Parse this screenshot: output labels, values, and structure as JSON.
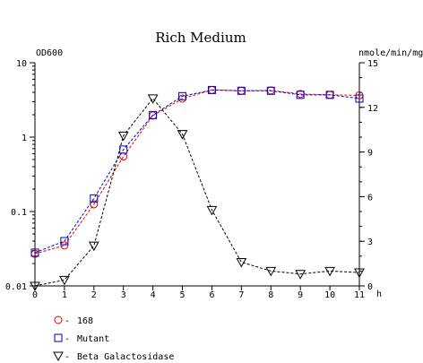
{
  "chart_data": {
    "type": "line",
    "title": "Rich Medium",
    "x": [
      0,
      1,
      2,
      3,
      4,
      5,
      6,
      7,
      8,
      9,
      10,
      11
    ],
    "x_label": "h",
    "y_left_label": "OD600",
    "y_right_label": "nmole/min/mg",
    "y_left_scale": "log",
    "y_left_range": [
      0.01,
      10
    ],
    "y_left_ticks": [
      "0.01",
      "0.1",
      "1",
      "10"
    ],
    "y_right_range": [
      0,
      15
    ],
    "y_right_ticks": [
      "0",
      "3",
      "6",
      "9",
      "12",
      "15"
    ],
    "x_ticks": [
      "0",
      "1",
      "2",
      "3",
      "4",
      "5",
      "6",
      "7",
      "8",
      "9",
      "10",
      "11"
    ],
    "legend_position": "bottom-left",
    "series": [
      {
        "name": "168",
        "axis": "left",
        "color": "#e00000",
        "marker": "circle",
        "values": [
          0.027,
          0.035,
          0.125,
          0.55,
          1.95,
          3.3,
          4.3,
          4.2,
          4.25,
          3.8,
          3.7,
          3.65
        ]
      },
      {
        "name": "Mutant",
        "axis": "left",
        "color": "#0000c8",
        "marker": "square",
        "values": [
          0.028,
          0.04,
          0.15,
          0.68,
          1.98,
          3.55,
          4.3,
          4.2,
          4.2,
          3.7,
          3.7,
          3.3
        ]
      },
      {
        "name": "Beta Galactosidase",
        "axis": "right",
        "color": "#000000",
        "marker": "triangle-down",
        "values": [
          0.0,
          0.4,
          2.7,
          10.1,
          12.6,
          10.2,
          5.1,
          1.6,
          1.0,
          0.8,
          1.0,
          0.9
        ]
      }
    ]
  }
}
